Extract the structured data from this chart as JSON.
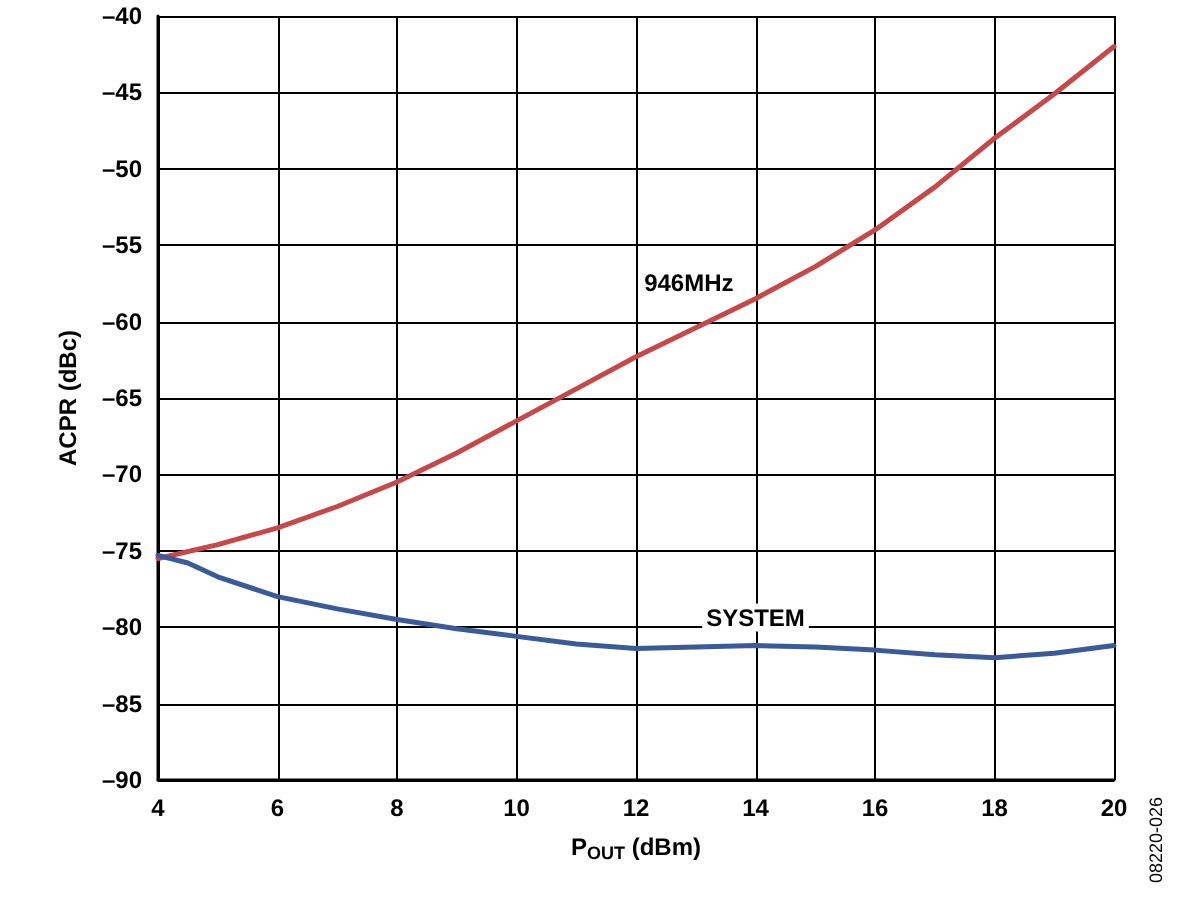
{
  "chart_data": {
    "type": "line",
    "xlabel": "P$_{OUT}$ (dBm)",
    "ylabel": "ACPR (dBc)",
    "xlim": [
      4,
      20
    ],
    "xticks": [
      4,
      6,
      8,
      10,
      12,
      14,
      16,
      18,
      20
    ],
    "ylim": [
      -90,
      -40
    ],
    "yticks": [
      {
        "value": -90,
        "label": "–90"
      },
      {
        "value": -85,
        "label": "–85"
      },
      {
        "value": -80,
        "label": "–80"
      },
      {
        "value": -75,
        "label": "–75"
      },
      {
        "value": -70,
        "label": "–70"
      },
      {
        "value": -65,
        "label": "–65"
      },
      {
        "value": -60,
        "label": "–60"
      },
      {
        "value": -55,
        "label": "–55"
      },
      {
        "value": -50,
        "label": "–50"
      },
      {
        "value": -45,
        "label": "–45"
      },
      {
        "value": -40,
        "label": "–40"
      }
    ],
    "grid": true,
    "marker": "none",
    "line_style": "solid",
    "series": [
      {
        "name": "946MHz",
        "color": "#c8484a",
        "x": [
          4,
          5,
          6,
          7,
          8,
          9,
          10,
          11,
          12,
          13,
          14,
          15,
          16,
          17,
          18,
          19,
          20
        ],
        "values": [
          -75.5,
          -74.6,
          -73.5,
          -72.1,
          -70.5,
          -68.6,
          -66.5,
          -64.4,
          -62.3,
          -60.4,
          -58.5,
          -56.4,
          -54,
          -51.2,
          -48,
          -45.1,
          -42
        ]
      },
      {
        "name": "SYSTEM",
        "color": "#3a5a9a",
        "x": [
          4,
          4.5,
          5,
          6,
          7,
          8,
          9,
          10,
          11,
          12,
          13,
          14,
          15,
          16,
          17,
          18,
          19,
          20
        ],
        "values": [
          -75.3,
          -75.8,
          -76.7,
          -78,
          -78.8,
          -79.5,
          -80.1,
          -80.6,
          -81.1,
          -81.4,
          -81.3,
          -81.2,
          -81.3,
          -81.5,
          -81.8,
          -82,
          -81.7,
          -81.2
        ]
      }
    ],
    "annotations": [
      "08220-026"
    ]
  }
}
